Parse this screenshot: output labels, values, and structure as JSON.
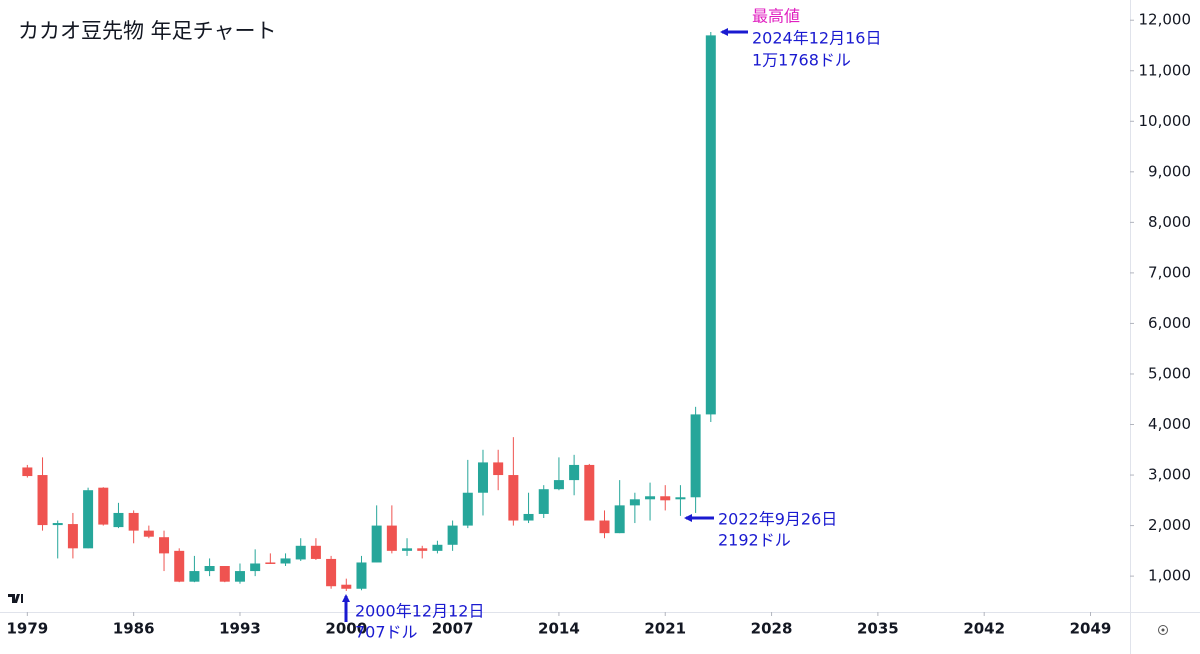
{
  "chart_data": {
    "type": "candlestick",
    "title": "カカオ豆先物 年足チャート",
    "x": [
      1979,
      1980,
      1981,
      1982,
      1983,
      1984,
      1985,
      1986,
      1987,
      1988,
      1989,
      1990,
      1991,
      1992,
      1993,
      1994,
      1995,
      1996,
      1997,
      1998,
      1999,
      2000,
      2001,
      2002,
      2003,
      2004,
      2005,
      2006,
      2007,
      2008,
      2009,
      2010,
      2011,
      2012,
      2013,
      2014,
      2015,
      2016,
      2017,
      2018,
      2019,
      2020,
      2021,
      2022,
      2023,
      2024
    ],
    "open": [
      3150,
      3000,
      2010,
      2030,
      1550,
      2750,
      1970,
      2250,
      1900,
      1770,
      1500,
      890,
      1100,
      1200,
      890,
      1100,
      1270,
      1250,
      1330,
      1600,
      1340,
      830,
      750,
      1270,
      2000,
      1500,
      1550,
      1500,
      1620,
      2000,
      2650,
      3250,
      3000,
      2100,
      2230,
      2720,
      2900,
      3200,
      2100,
      1850,
      2400,
      2520,
      2580,
      2520,
      2560,
      4200
    ],
    "high": [
      3200,
      3350,
      2100,
      2250,
      2750,
      2760,
      2450,
      2300,
      2000,
      1900,
      1550,
      1400,
      1350,
      1200,
      1250,
      1530,
      1450,
      1450,
      1750,
      1750,
      1400,
      950,
      1400,
      2400,
      2400,
      1750,
      1600,
      1700,
      2100,
      3300,
      3500,
      3500,
      3750,
      2650,
      2800,
      3350,
      3400,
      3220,
      2300,
      2900,
      2650,
      2850,
      2800,
      2800,
      4350,
      11768
    ],
    "low": [
      2950,
      1900,
      1350,
      1350,
      1550,
      2000,
      1950,
      1650,
      1750,
      1100,
      880,
      880,
      1000,
      880,
      850,
      1000,
      1240,
      1200,
      1300,
      1320,
      750,
      707,
      720,
      1270,
      1450,
      1400,
      1350,
      1450,
      1500,
      1950,
      2200,
      2700,
      2000,
      2050,
      2150,
      2700,
      2600,
      2100,
      1750,
      1850,
      2050,
      2100,
      2300,
      2192,
      2250,
      4050
    ],
    "close": [
      2980,
      2010,
      2050,
      1550,
      2700,
      2020,
      2250,
      1900,
      1780,
      1450,
      890,
      1100,
      1200,
      890,
      1100,
      1250,
      1250,
      1350,
      1600,
      1340,
      800,
      750,
      1270,
      2000,
      1500,
      1550,
      1500,
      1620,
      2000,
      2650,
      3250,
      3000,
      2100,
      2230,
      2720,
      2900,
      3200,
      2100,
      1850,
      2400,
      2520,
      2580,
      2500,
      2560,
      4200,
      11700
    ],
    "up_color": "#26a69a",
    "down_color": "#ef5350",
    "xlim": [
      1977.2,
      2051.6
    ],
    "xticks": [
      1979,
      1986,
      1993,
      2000,
      2007,
      2014,
      2021,
      2028,
      2035,
      2042,
      2049
    ],
    "ylim": [
      290,
      12400
    ],
    "yticks": [
      {
        "value": 1000,
        "label": "1,000"
      },
      {
        "value": 2000,
        "label": "2,000"
      },
      {
        "value": 3000,
        "label": "3,000"
      },
      {
        "value": 4000,
        "label": "4,000"
      },
      {
        "value": 5000,
        "label": "5,000"
      },
      {
        "value": 6000,
        "label": "6,000"
      },
      {
        "value": 7000,
        "label": "7,000"
      },
      {
        "value": 8000,
        "label": "8,000"
      },
      {
        "value": 9000,
        "label": "9,000"
      },
      {
        "value": 10000,
        "label": "10,000"
      },
      {
        "value": 11000,
        "label": "11,000"
      },
      {
        "value": 12000,
        "label": "12,000"
      }
    ],
    "annotations": [
      {
        "lines": [
          "最高値",
          "2024年12月16日",
          "1万1768ドル"
        ]
      },
      {
        "lines": [
          "2022年9月26日",
          "2192ドル"
        ]
      },
      {
        "lines": [
          "2000年12月12日",
          "707ドル"
        ]
      }
    ]
  }
}
